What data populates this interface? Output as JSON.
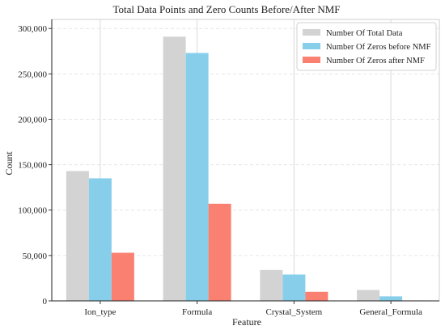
{
  "chart_data": {
    "type": "bar",
    "title": "Total Data Points and Zero Counts Before/After NMF",
    "xlabel": "Feature",
    "ylabel": "Count",
    "categories": [
      "Ion_type",
      "Formula",
      "Crystal_System",
      "General_Formula"
    ],
    "series": [
      {
        "name": "Number Of Total Data",
        "color": "#d3d3d3",
        "values": [
          143000,
          291000,
          34000,
          12000
        ]
      },
      {
        "name": "Number Of Zeros before NMF",
        "color": "#87ceeb",
        "values": [
          135000,
          273000,
          29000,
          5000
        ]
      },
      {
        "name": "Number Of Zeros after NMF",
        "color": "#fa8072",
        "values": [
          53000,
          107000,
          10000,
          500
        ]
      }
    ],
    "ylim": [
      0,
      310000
    ],
    "yticks": [
      0,
      50000,
      100000,
      150000,
      200000,
      250000,
      300000
    ],
    "ytick_labels": [
      "0",
      "50,000",
      "100,000",
      "150,000",
      "200,000",
      "250,000",
      "300,000"
    ],
    "grid": true,
    "legend_position": "top-right"
  }
}
